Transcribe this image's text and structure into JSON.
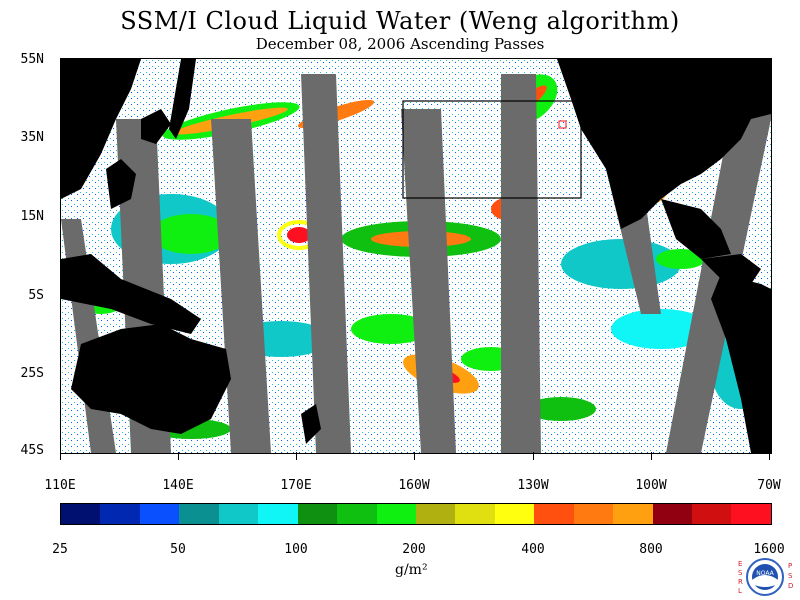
{
  "title": "SSM/I Cloud Liquid Water (Weng algorithm)",
  "subtitle": "December 08, 2006  Ascending Passes",
  "map": {
    "lat_labels": [
      "55N",
      "35N",
      "15N",
      "5S",
      "25S",
      "45S"
    ],
    "lon_labels": [
      "110E",
      "140E",
      "170E",
      "160W",
      "130W",
      "100W",
      "70W"
    ],
    "land_color": "#000000",
    "ocean_clear_color": "#ffffff",
    "swath_gap_color": "#6b6b6b"
  },
  "colorbar": {
    "colors": [
      "#001070",
      "#0028b0",
      "#0a50ff",
      "#0a9090",
      "#10c8c8",
      "#10f5f5",
      "#109010",
      "#10c010",
      "#10f010",
      "#b0b010",
      "#e0e010",
      "#ffff10",
      "#ff5010",
      "#ff7a10",
      "#ffa010",
      "#900010",
      "#d01010",
      "#ff1020"
    ],
    "tick_labels": [
      "25",
      "50",
      "100",
      "200",
      "400",
      "800",
      "1600"
    ],
    "units": "g/m²"
  },
  "logo": {
    "left_letters": "ESRL",
    "right_letters": "PSD",
    "center_text": "NOAA"
  }
}
